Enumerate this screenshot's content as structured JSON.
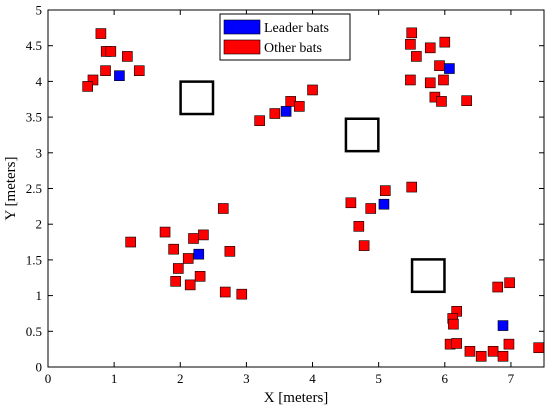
{
  "chart_data": {
    "type": "scatter",
    "xlabel": "X [meters]",
    "ylabel": "Y [meters]",
    "xlim": [
      0,
      7.5
    ],
    "ylim": [
      0,
      5
    ],
    "xticks": [
      "0",
      "1",
      "2",
      "3",
      "4",
      "5",
      "6",
      "7"
    ],
    "yticks": [
      "0",
      "0.5",
      "1",
      "1.5",
      "2",
      "2.5",
      "3",
      "3.5",
      "4",
      "4.5",
      "5"
    ],
    "grid": false,
    "legend_position": "top-center",
    "series": [
      {
        "name": "Leader bats",
        "color": "#0000ff",
        "marker": "square",
        "points": [
          [
            1.08,
            4.08
          ],
          [
            3.6,
            3.58
          ],
          [
            6.07,
            4.18
          ],
          [
            5.08,
            2.28
          ],
          [
            2.28,
            1.58
          ],
          [
            6.88,
            0.58
          ]
        ]
      },
      {
        "name": "Other bats",
        "color": "#ff0000",
        "marker": "square",
        "points": [
          [
            0.8,
            4.67
          ],
          [
            0.88,
            4.42
          ],
          [
            0.95,
            4.42
          ],
          [
            1.2,
            4.35
          ],
          [
            1.38,
            4.15
          ],
          [
            0.87,
            4.15
          ],
          [
            0.68,
            4.02
          ],
          [
            0.6,
            3.93
          ],
          [
            3.2,
            3.45
          ],
          [
            3.43,
            3.55
          ],
          [
            3.67,
            3.72
          ],
          [
            3.8,
            3.65
          ],
          [
            4.0,
            3.88
          ],
          [
            5.5,
            4.68
          ],
          [
            5.48,
            4.52
          ],
          [
            5.57,
            4.35
          ],
          [
            5.78,
            4.47
          ],
          [
            6.0,
            4.55
          ],
          [
            5.92,
            4.22
          ],
          [
            5.98,
            4.02
          ],
          [
            5.78,
            3.98
          ],
          [
            5.48,
            4.02
          ],
          [
            5.85,
            3.78
          ],
          [
            5.95,
            3.72
          ],
          [
            6.33,
            3.73
          ],
          [
            4.58,
            2.3
          ],
          [
            4.88,
            2.22
          ],
          [
            5.1,
            2.47
          ],
          [
            5.5,
            2.52
          ],
          [
            4.7,
            1.97
          ],
          [
            4.78,
            1.7
          ],
          [
            1.25,
            1.75
          ],
          [
            1.77,
            1.89
          ],
          [
            1.9,
            1.65
          ],
          [
            2.12,
            1.52
          ],
          [
            2.2,
            1.8
          ],
          [
            2.35,
            1.85
          ],
          [
            2.65,
            2.22
          ],
          [
            1.97,
            1.38
          ],
          [
            1.93,
            1.2
          ],
          [
            2.15,
            1.15
          ],
          [
            2.3,
            1.27
          ],
          [
            2.75,
            1.62
          ],
          [
            2.68,
            1.05
          ],
          [
            2.93,
            1.02
          ],
          [
            6.8,
            1.12
          ],
          [
            6.98,
            1.18
          ],
          [
            6.18,
            0.78
          ],
          [
            6.12,
            0.68
          ],
          [
            6.13,
            0.6
          ],
          [
            6.08,
            0.32
          ],
          [
            6.18,
            0.33
          ],
          [
            6.38,
            0.22
          ],
          [
            6.55,
            0.15
          ],
          [
            6.73,
            0.22
          ],
          [
            6.88,
            0.15
          ],
          [
            6.97,
            0.32
          ],
          [
            7.42,
            0.27
          ]
        ]
      },
      {
        "name": "",
        "color": "#000000",
        "marker": "open-square",
        "points": [
          [
            2.25,
            3.77
          ],
          [
            4.75,
            3.25
          ],
          [
            5.75,
            1.28
          ]
        ]
      }
    ]
  }
}
